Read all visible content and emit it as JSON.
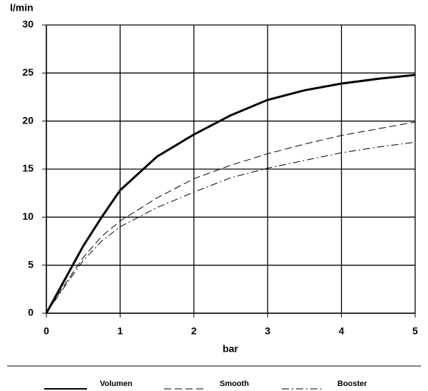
{
  "chart_data": {
    "type": "line",
    "y_label": "l/min",
    "x_label": "bar",
    "x": [
      0,
      0.25,
      0.5,
      0.75,
      1,
      1.5,
      2,
      2.5,
      3,
      3.5,
      4,
      4.5,
      5
    ],
    "series": [
      {
        "name": "Volumen",
        "color": "#000000",
        "line_style": "solid",
        "line_width": 3,
        "values": [
          0,
          3.5,
          7,
          10,
          12.8,
          16.3,
          18.6,
          20.6,
          22.2,
          23.2,
          23.9,
          24.4,
          24.8
        ]
      },
      {
        "name": "Smooth",
        "color": "#000000",
        "line_style": "dashed",
        "line_width": 1,
        "values": [
          0,
          3,
          5.8,
          8,
          9.6,
          12,
          14,
          15.4,
          16.6,
          17.6,
          18.5,
          19.2,
          19.9
        ]
      },
      {
        "name": "Booster",
        "color": "#000000",
        "line_style": "dashdot",
        "line_width": 1,
        "values": [
          0,
          2.8,
          5.5,
          7.5,
          9,
          11,
          12.6,
          14.1,
          15.1,
          15.9,
          16.7,
          17.3,
          17.8
        ]
      }
    ],
    "xlim": [
      0,
      5
    ],
    "xticks": [
      0,
      1,
      2,
      3,
      4,
      5
    ],
    "ylim": [
      0,
      30
    ],
    "yticks": [
      0,
      5,
      10,
      15,
      20,
      25,
      30
    ],
    "grid": true,
    "legend": "bottom"
  }
}
